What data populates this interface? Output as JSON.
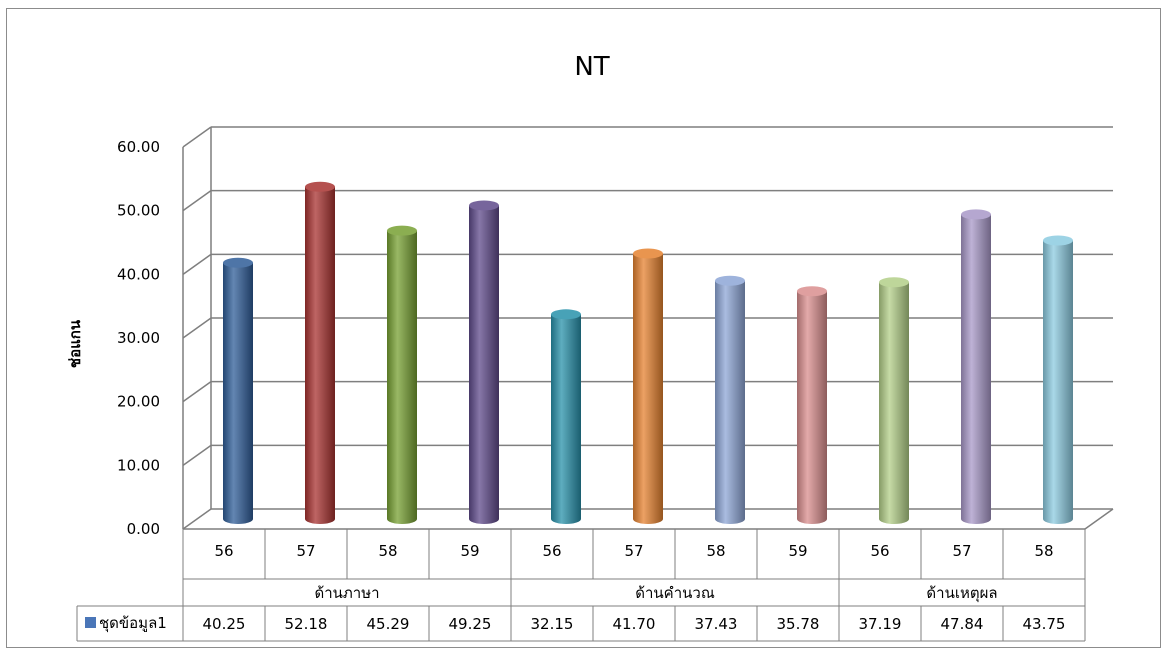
{
  "chart_data": {
    "type": "bar",
    "title": "NT",
    "ylabel": "ช่อแกน",
    "ylim": [
      0,
      60
    ],
    "yticks": [
      "0.00",
      "10.00",
      "20.00",
      "30.00",
      "40.00",
      "50.00",
      "60.00"
    ],
    "grid": true,
    "groups": [
      {
        "name": "ด้านภาษา",
        "categories": [
          "56",
          "57",
          "58",
          "59"
        ]
      },
      {
        "name": "ด้านคำนวณ",
        "categories": [
          "56",
          "57",
          "58",
          "59"
        ]
      },
      {
        "name": "ด้านเหตุผล",
        "categories": [
          "56",
          "57",
          "58"
        ]
      }
    ],
    "series": [
      {
        "name": "ชุดข้อมูล1",
        "values": [
          40.25,
          52.18,
          45.29,
          49.25,
          32.15,
          41.7,
          37.43,
          35.78,
          37.19,
          47.84,
          43.75
        ],
        "labels": [
          "40.25",
          "52.18",
          "45.29",
          "49.25",
          "32.15",
          "41.70",
          "37.43",
          "35.78",
          "37.19",
          "47.84",
          "43.75"
        ]
      }
    ],
    "bar_colors": [
      "#2f5d98",
      "#a83230",
      "#77a032",
      "#5f4a8b",
      "#2891aa",
      "#e58230",
      "#8da6d6",
      "#d98e8e",
      "#b3cf88",
      "#a898c8",
      "#8ccbe0"
    ],
    "legend_marker_color": "#4a76b8"
  }
}
